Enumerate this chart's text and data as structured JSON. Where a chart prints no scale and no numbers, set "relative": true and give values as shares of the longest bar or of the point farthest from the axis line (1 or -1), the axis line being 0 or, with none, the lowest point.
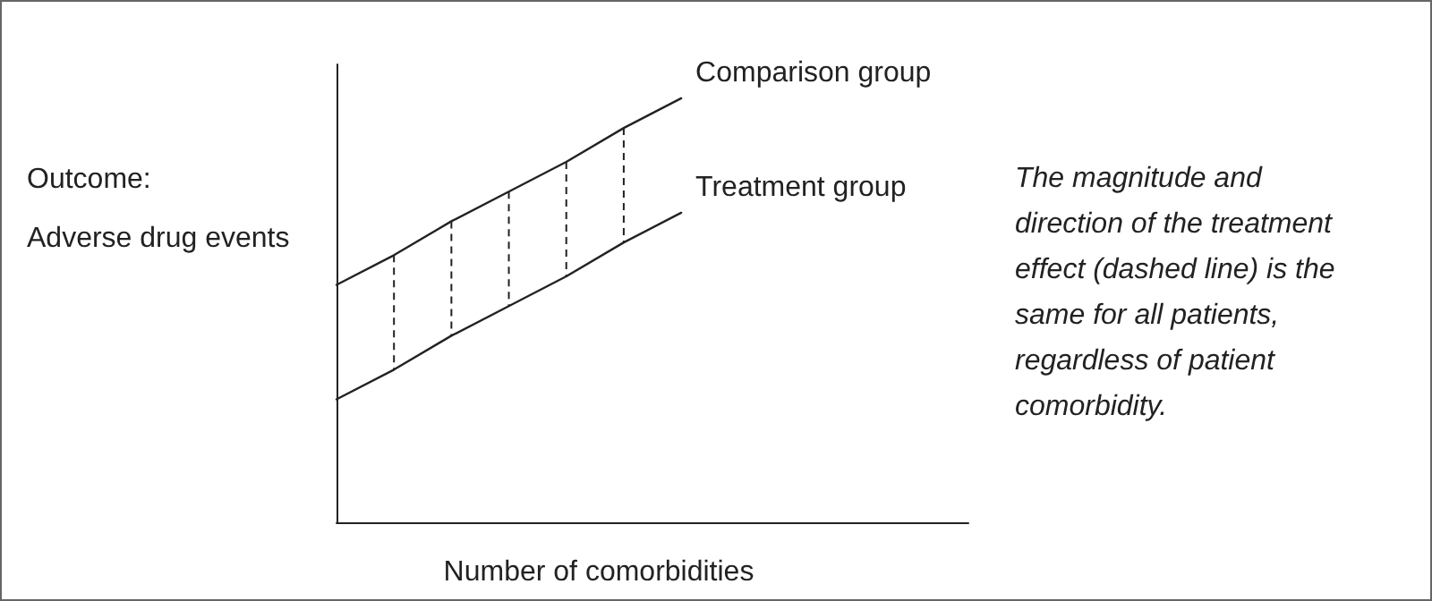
{
  "chart_data": {
    "type": "line",
    "relative": true,
    "xlabel": "Number of comorbidities",
    "ylabel": "Outcome:\nAdverse drug events",
    "categories": [
      null,
      null,
      null,
      null,
      null,
      null,
      null,
      null,
      null,
      null,
      null,
      null
    ],
    "series": [
      {
        "name": "Comparison group",
        "color": "#222222",
        "values": [
          0.56,
          0.63,
          0.71,
          0.78,
          0.85,
          0.93,
          1.0,
          null,
          null,
          null,
          null,
          null
        ]
      },
      {
        "name": "Treatment group",
        "color": "#222222",
        "values": [
          0.29,
          0.36,
          0.44,
          0.51,
          0.58,
          0.66,
          0.73,
          null,
          null,
          null,
          null,
          null
        ]
      }
    ],
    "annotations": [
      "The magnitude and direction of the treatment effect (dashed line) is the same for all patients, regardless of patient comorbidity."
    ],
    "marker": "none",
    "line_style": "solid",
    "grid": false,
    "legend": false
  }
}
